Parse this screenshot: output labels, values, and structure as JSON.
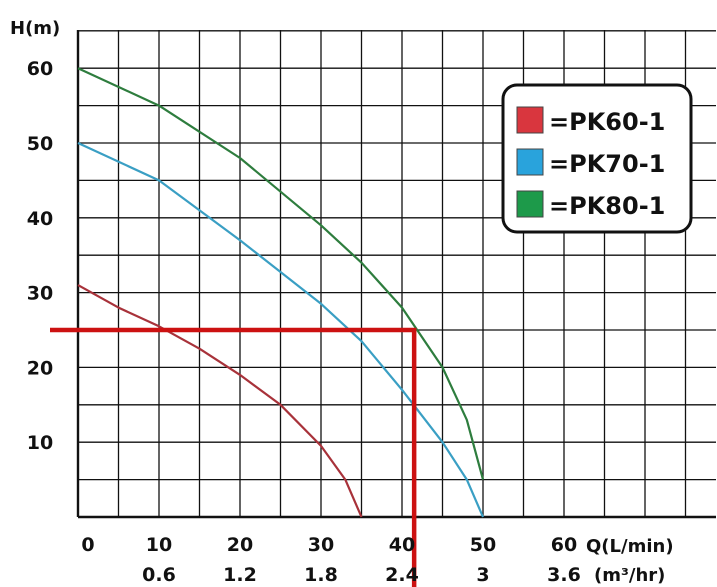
{
  "chart_data": {
    "type": "line",
    "ylabel": "H(m)",
    "xlabel": "Q(L/min)",
    "xlabel2": "(m³/hr)",
    "xlim": [
      0,
      70
    ],
    "ylim": [
      0,
      64
    ],
    "grid": true,
    "legend_position": "top-right",
    "x_ticks": [
      0,
      10,
      20,
      30,
      40,
      50,
      60
    ],
    "x_tick_labels": [
      "0",
      "10",
      "20",
      "30",
      "40",
      "50",
      "60"
    ],
    "x2_tick_labels": [
      "",
      "0.6",
      "1.2",
      "1.8",
      "2.4",
      "3",
      "3.6"
    ],
    "y_ticks": [
      10,
      20,
      30,
      40,
      50,
      60
    ],
    "y_tick_labels": [
      "10",
      "20",
      "30",
      "40",
      "50",
      "60"
    ],
    "series": [
      {
        "name": "PK60-1",
        "color": "#a8323a",
        "legend_color": "#d9363e",
        "x": [
          0,
          5,
          10,
          15,
          20,
          25,
          30,
          33,
          35
        ],
        "y": [
          31,
          28,
          25.5,
          22.5,
          19,
          15,
          9.5,
          5,
          0
        ]
      },
      {
        "name": "PK70-1",
        "color": "#3a9fc4",
        "legend_color": "#29a3dc",
        "x": [
          0,
          10,
          20,
          30,
          35,
          40,
          45,
          48,
          50
        ],
        "y": [
          50,
          45,
          37,
          28.5,
          23.5,
          17,
          10,
          5,
          0
        ]
      },
      {
        "name": "PK80-1",
        "color": "#2e7d3e",
        "legend_color": "#1d9a4a",
        "x": [
          0,
          10,
          20,
          30,
          35,
          40,
          45,
          48,
          50
        ],
        "y": [
          60,
          55,
          48,
          39,
          34,
          28,
          20,
          13,
          5
        ]
      }
    ],
    "annotation": {
      "type": "operating-point-lines",
      "color": "#cc1111",
      "x": 41.5,
      "y": 25
    },
    "legend_prefix": "="
  }
}
